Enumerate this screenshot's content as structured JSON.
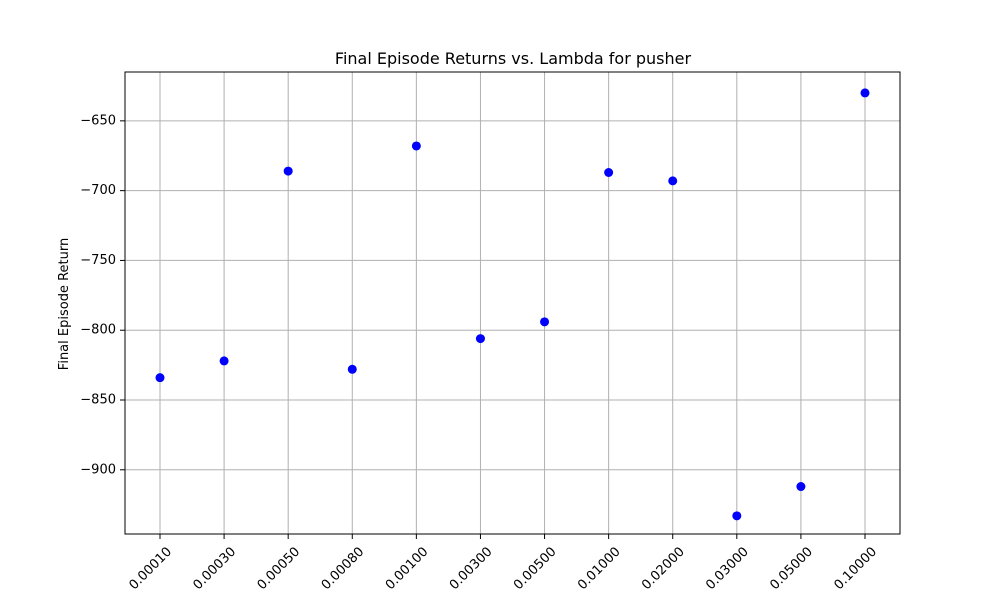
{
  "chart_data": {
    "type": "scatter",
    "title": "Final Episode Returns vs. Lambda for pusher",
    "xlabel": "",
    "ylabel": "Final Episode Return",
    "categories": [
      "0.00010",
      "0.00030",
      "0.00050",
      "0.00080",
      "0.00100",
      "0.00300",
      "0.00500",
      "0.01000",
      "0.02000",
      "0.03000",
      "0.05000",
      "0.10000"
    ],
    "values": [
      -834,
      -822,
      -686,
      -828,
      -668,
      -806,
      -794,
      -687,
      -693,
      -933,
      -912,
      -630
    ],
    "y_ticks": [
      -650,
      -700,
      -750,
      -800,
      -850,
      -900
    ],
    "ylim": [
      -946,
      -615
    ],
    "grid": true,
    "point_color": "#0000ff"
  }
}
